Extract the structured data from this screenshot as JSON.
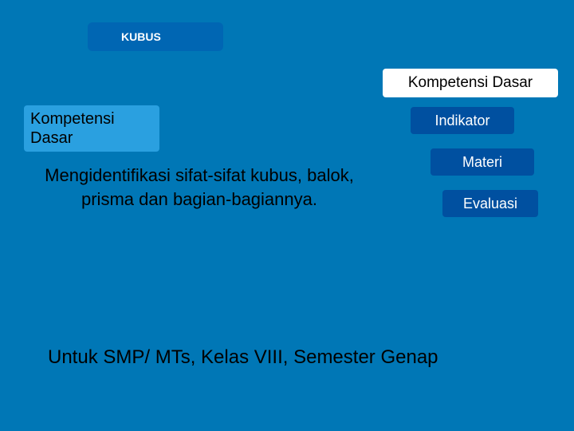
{
  "title_badge": "KUBUS",
  "top_right": "Kompetensi Dasar",
  "left_heading": "Kompetensi Dasar",
  "nav": {
    "indikator": "Indikator",
    "materi": "Materi",
    "evaluasi": "Evaluasi"
  },
  "content": "Mengidentifikasi sifat-sifat kubus, balok, prisma  dan bagian-bagiannya.",
  "footer": "Untuk SMP/ MTs, Kelas VIII, Semester Genap",
  "colors": {
    "slide_bg": "#0077b6",
    "title_badge_bg": "#0066b3",
    "nav_bg": "#0050a0",
    "highlight_bg": "#2aa0e0",
    "white": "#ffffff",
    "text_black": "#000000"
  }
}
